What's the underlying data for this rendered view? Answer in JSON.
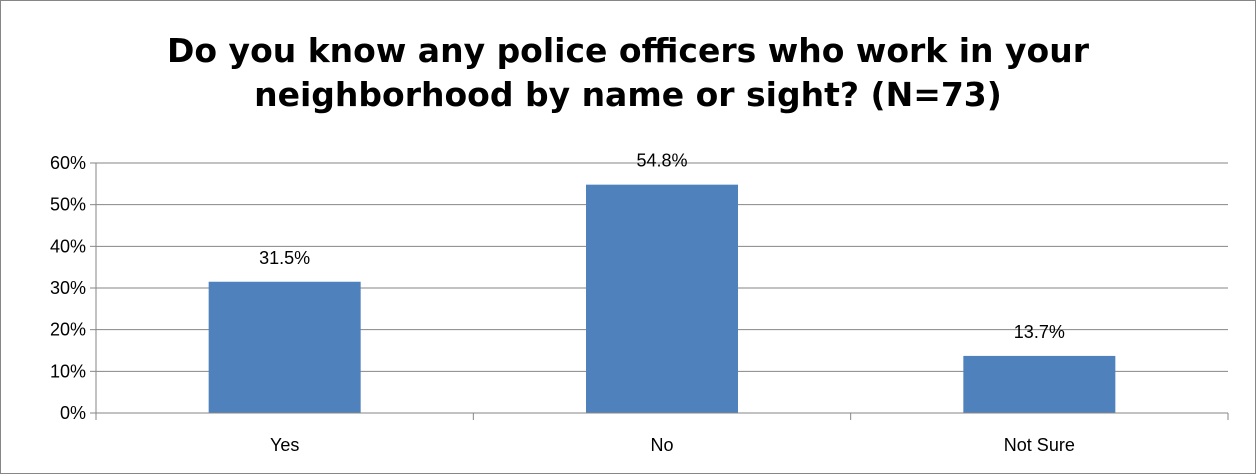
{
  "chart_data": {
    "type": "bar",
    "title_lines": [
      "Do you know any police officers who work in your",
      "neighborhood by name or sight? (N=73)"
    ],
    "categories": [
      "Yes",
      "No",
      "Not Sure"
    ],
    "values": [
      31.5,
      54.8,
      13.7
    ],
    "data_labels": [
      "31.5%",
      "54.8%",
      "13.7%"
    ],
    "y_ticks": [
      0,
      10,
      20,
      30,
      40,
      50,
      60
    ],
    "y_tick_labels": [
      "0%",
      "10%",
      "20%",
      "30%",
      "40%",
      "50%",
      "60%"
    ],
    "ylim": [
      0,
      60
    ],
    "grid": true,
    "legend": "none",
    "bar_color": "#4F81BD",
    "gridline_color": "#868686"
  }
}
